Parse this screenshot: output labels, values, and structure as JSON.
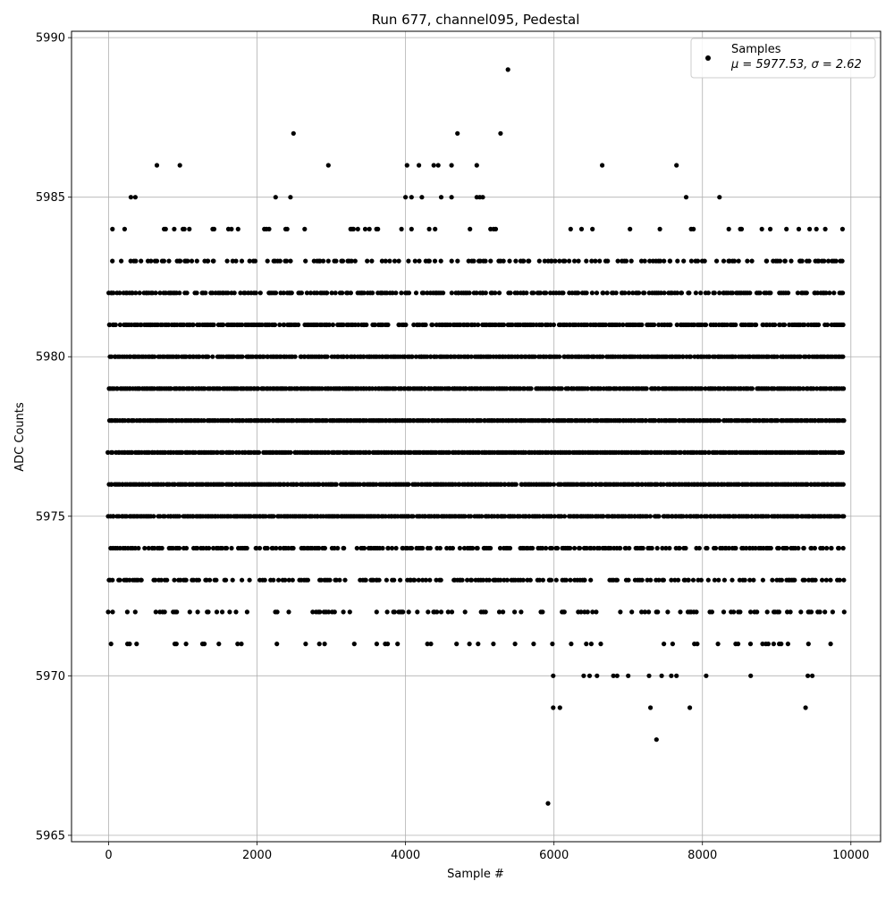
{
  "chart_data": {
    "type": "scatter",
    "title": "Run 677, channel095, Pedestal",
    "xlabel": "Sample #",
    "ylabel": "ADC Counts",
    "xlim": [
      -500,
      10400
    ],
    "ylim": [
      5964.8,
      5990.2
    ],
    "xticks": [
      0,
      2000,
      4000,
      6000,
      8000,
      10000
    ],
    "yticks": [
      5965,
      5970,
      5975,
      5980,
      5985,
      5990
    ],
    "grid": true,
    "legend_position": "top-right",
    "marker_color": "#000000",
    "series": [
      {
        "name": "Samples",
        "stats_label": "μ = 5977.53, σ = 2.62",
        "dense_rows": [
          {
            "y": 5971,
            "x_range": [
              0,
              9900
            ],
            "density": 0.12
          },
          {
            "y": 5972,
            "x_range": [
              0,
              9900
            ],
            "density": 0.3
          },
          {
            "y": 5973,
            "x_range": [
              0,
              9900
            ],
            "density": 0.5
          },
          {
            "y": 5974,
            "x_range": [
              0,
              9900
            ],
            "density": 0.65
          },
          {
            "y": 5975,
            "x_range": [
              0,
              9900
            ],
            "density": 0.92
          },
          {
            "y": 5976,
            "x_range": [
              0,
              9900
            ],
            "density": 0.97
          },
          {
            "y": 5977,
            "x_range": [
              0,
              9900
            ],
            "density": 0.99
          },
          {
            "y": 5978,
            "x_range": [
              0,
              9900
            ],
            "density": 0.99
          },
          {
            "y": 5979,
            "x_range": [
              0,
              9900
            ],
            "density": 0.98
          },
          {
            "y": 5980,
            "x_range": [
              0,
              9900
            ],
            "density": 0.92
          },
          {
            "y": 5981,
            "x_range": [
              0,
              9900
            ],
            "density": 0.8
          },
          {
            "y": 5982,
            "x_range": [
              0,
              9900
            ],
            "density": 0.65
          },
          {
            "y": 5983,
            "x_range": [
              0,
              9900
            ],
            "density": 0.45
          },
          {
            "y": 5984,
            "x_range": [
              0,
              9900
            ],
            "density": 0.12
          }
        ],
        "sparse_points": [
          {
            "x": 300,
            "y": 5985
          },
          {
            "x": 360,
            "y": 5985
          },
          {
            "x": 2250,
            "y": 5985
          },
          {
            "x": 2450,
            "y": 5985
          },
          {
            "x": 4000,
            "y": 5985
          },
          {
            "x": 4080,
            "y": 5985
          },
          {
            "x": 4220,
            "y": 5985
          },
          {
            "x": 4480,
            "y": 5985
          },
          {
            "x": 4620,
            "y": 5985
          },
          {
            "x": 4960,
            "y": 5985
          },
          {
            "x": 5000,
            "y": 5985
          },
          {
            "x": 5040,
            "y": 5985
          },
          {
            "x": 7780,
            "y": 5985
          },
          {
            "x": 8230,
            "y": 5985
          },
          {
            "x": 650,
            "y": 5986
          },
          {
            "x": 960,
            "y": 5986
          },
          {
            "x": 2960,
            "y": 5986
          },
          {
            "x": 4020,
            "y": 5986
          },
          {
            "x": 4180,
            "y": 5986
          },
          {
            "x": 4380,
            "y": 5986
          },
          {
            "x": 4440,
            "y": 5986
          },
          {
            "x": 4620,
            "y": 5986
          },
          {
            "x": 4960,
            "y": 5986
          },
          {
            "x": 6650,
            "y": 5986
          },
          {
            "x": 7650,
            "y": 5986
          },
          {
            "x": 2490,
            "y": 5987
          },
          {
            "x": 4700,
            "y": 5987
          },
          {
            "x": 5280,
            "y": 5987
          },
          {
            "x": 5380,
            "y": 5989
          },
          {
            "x": 5990,
            "y": 5970
          },
          {
            "x": 6400,
            "y": 5970
          },
          {
            "x": 6480,
            "y": 5970
          },
          {
            "x": 6580,
            "y": 5970
          },
          {
            "x": 6800,
            "y": 5970
          },
          {
            "x": 6850,
            "y": 5970
          },
          {
            "x": 7000,
            "y": 5970
          },
          {
            "x": 7280,
            "y": 5970
          },
          {
            "x": 7450,
            "y": 5970
          },
          {
            "x": 7580,
            "y": 5970
          },
          {
            "x": 7650,
            "y": 5970
          },
          {
            "x": 8050,
            "y": 5970
          },
          {
            "x": 8650,
            "y": 5970
          },
          {
            "x": 9420,
            "y": 5970
          },
          {
            "x": 9480,
            "y": 5970
          },
          {
            "x": 5990,
            "y": 5969
          },
          {
            "x": 6080,
            "y": 5969
          },
          {
            "x": 7300,
            "y": 5969
          },
          {
            "x": 7830,
            "y": 5969
          },
          {
            "x": 9390,
            "y": 5969
          },
          {
            "x": 7380,
            "y": 5968
          },
          {
            "x": 5920,
            "y": 5966
          }
        ]
      }
    ]
  }
}
